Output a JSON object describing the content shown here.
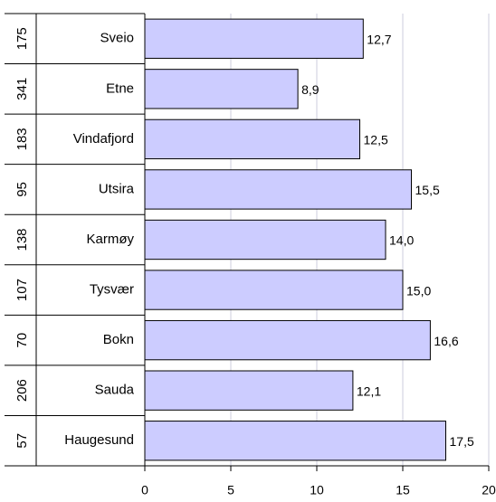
{
  "chart_data": {
    "type": "bar",
    "orientation": "horizontal",
    "categories": [
      "Sveio",
      "Etne",
      "Vindafjord",
      "Utsira",
      "Karmøy",
      "Tysvær",
      "Bokn",
      "Sauda",
      "Haugesund"
    ],
    "codes": [
      "175",
      "341",
      "183",
      "95",
      "138",
      "107",
      "70",
      "206",
      "57"
    ],
    "values": [
      12.7,
      8.9,
      12.5,
      15.5,
      14.0,
      15.0,
      16.6,
      12.1,
      17.5
    ],
    "value_labels": [
      "12,7",
      "8,9",
      "12,5",
      "15,5",
      "14,0",
      "15,0",
      "16,6",
      "12,1",
      "17,5"
    ],
    "color": "#ccccff",
    "xlim": [
      0,
      20
    ],
    "xticks": [
      0,
      5,
      10,
      15,
      20
    ],
    "grid": true
  }
}
